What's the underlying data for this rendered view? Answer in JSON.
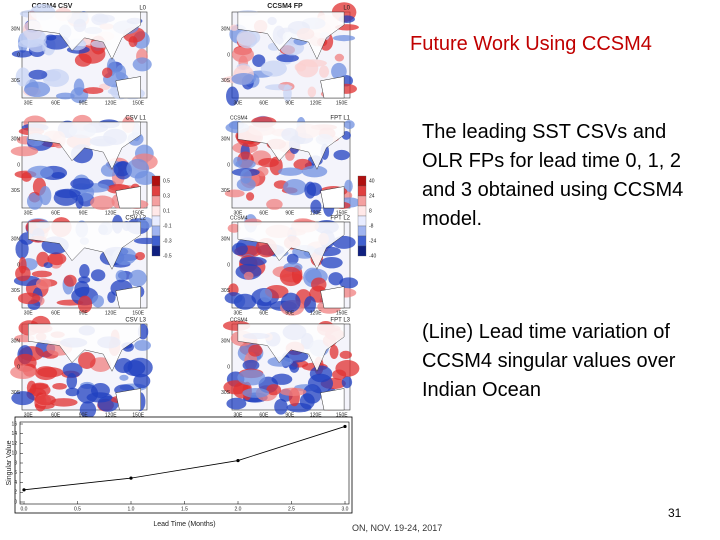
{
  "title": "Future Work Using CCSM4",
  "paragraphs": [
    "The leading SST CSVs and OLR FPs for lead time 0, 1, 2 and 3 obtained using CCSM4 model.",
    "(Line) Lead time variation of CCSM4 singular values over Indian Ocean"
  ],
  "page_number": "31",
  "footer": "ON, NOV. 19-24, 2017",
  "maps": {
    "left_header": "CCSM4 CSV",
    "right_header": "CCSM4 FP",
    "model_label": "CCSM4",
    "rows": [
      {
        "left": "L0",
        "right": "L0"
      },
      {
        "left": "CSV L1",
        "right": "FPT L1"
      },
      {
        "left": "CSV L2",
        "right": "FPT L2"
      },
      {
        "left": "CSV L3",
        "right": "FPT L3"
      }
    ],
    "lat_labels": [
      "30N",
      "0",
      "30S"
    ],
    "lon_labels": [
      "30E",
      "60E",
      "90E",
      "120E",
      "150E"
    ],
    "left_colorbar": [
      "0.5",
      "0.3",
      "0.1",
      "-0.1",
      "-0.3",
      "-0.5"
    ],
    "right_colorbar": [
      "40",
      "24",
      "8",
      "-8",
      "-24",
      "-40"
    ]
  },
  "chart_data": {
    "type": "line",
    "x_label": "Lead Time (Months)",
    "y_label": "Singular Value",
    "x": [
      0,
      1,
      2,
      3
    ],
    "values": [
      2.5,
      4.9,
      8.5,
      15.5
    ],
    "color": "#000000",
    "xlim": [
      0,
      3
    ],
    "ylim": [
      0,
      16
    ],
    "xticks": [
      {
        "value": 0,
        "label": "0.0"
      },
      {
        "value": 0.5,
        "label": "0.5"
      },
      {
        "value": 1,
        "label": "1.0"
      },
      {
        "value": 1.5,
        "label": "1.5"
      },
      {
        "value": 2,
        "label": "2.0"
      },
      {
        "value": 2.5,
        "label": "2.5"
      },
      {
        "value": 3,
        "label": "3.0"
      }
    ],
    "yticks": [
      0,
      2,
      4,
      6,
      8,
      10,
      12,
      14,
      16
    ]
  }
}
